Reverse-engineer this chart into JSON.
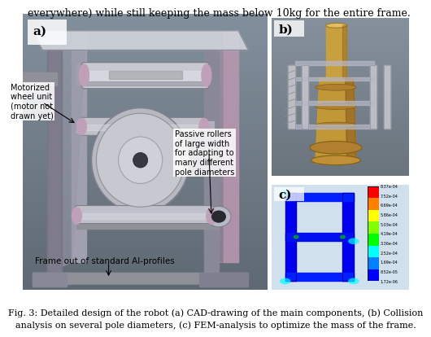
{
  "title_text": "everywhere) while still keeping the mass below 10kg for the entire frame.",
  "caption_line1": "Fig. 3: Detailed design of the robot (a) CAD-drawing of the main components, (b) Collision",
  "caption_line2": "analysis on several pole diameters, (c) FEM-analysis to optimize the mass of the frame.",
  "label_a": "a)",
  "label_b": "b)",
  "label_c": "c)",
  "annotation_motorized": "Motorized\nwheel unit\n(motor not\ndrawn yet)",
  "annotation_passive": "Passive rollers\nof large width\nfor adapting to\nmany different\npole diameters",
  "annotation_frame": "Frame out of standard Al-profiles",
  "panel_a_bg": "#a8b8c8",
  "panel_b_bg": "#b0bcc8",
  "panel_c_bg": "#c0ccd8",
  "fig_bg": "#ffffff",
  "title_fontsize": 9.0,
  "caption_fontsize": 8.0,
  "label_fontsize": 11,
  "annotation_fontsize": 7.0,
  "frame_color": "#7a7090",
  "frame_dark": "#555060",
  "roller_color": "#b8b8c0",
  "roller_edge": "#808088",
  "spool_color": "#c0c0c8",
  "pink_color": "#c0a0b8",
  "pole_gold": "#c8a040",
  "pole_gold_dark": "#a07828",
  "fem_blue": "#0000ee",
  "fem_dark_blue": "#0000aa"
}
